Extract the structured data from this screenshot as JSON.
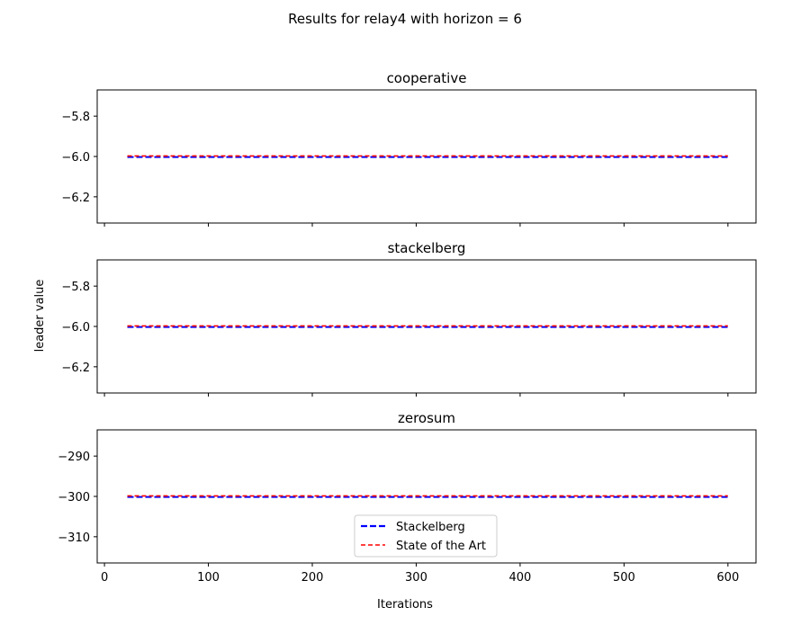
{
  "figure": {
    "suptitle": "Results for relay4 with horizon = 6",
    "xlabel": "Iterations",
    "ylabel": "leader value"
  },
  "legend": {
    "placement": "lower-center (bottom panel)",
    "entries": [
      {
        "label": "Stackelberg",
        "color": "#0000ff",
        "style": "dashed"
      },
      {
        "label": "State of the Art",
        "color": "#ff0000",
        "style": "dashed"
      }
    ]
  },
  "chart_data": [
    {
      "type": "line",
      "title": "cooperative",
      "xlabel": "",
      "ylabel": "",
      "xlim": [
        -7,
        627
      ],
      "ylim": [
        -6.33,
        -5.67
      ],
      "xticks": [
        0,
        100,
        200,
        300,
        400,
        500,
        600
      ],
      "xtick_labels_visible": false,
      "yticks": [
        -5.8,
        -6.0,
        -6.2
      ],
      "ytick_labels": [
        "−5.8",
        "−6.0",
        "−6.2"
      ],
      "grid": false,
      "series": [
        {
          "name": "Stackelberg",
          "color": "#0000ff",
          "x": [
            22,
            600
          ],
          "y": [
            -6.0,
            -6.0
          ]
        },
        {
          "name": "State of the Art",
          "color": "#ff0000",
          "x": [
            22,
            600
          ],
          "y": [
            -6.0,
            -6.0
          ]
        }
      ]
    },
    {
      "type": "line",
      "title": "stackelberg",
      "xlabel": "",
      "ylabel": "leader value",
      "xlim": [
        -7,
        627
      ],
      "ylim": [
        -6.33,
        -5.67
      ],
      "xticks": [
        0,
        100,
        200,
        300,
        400,
        500,
        600
      ],
      "xtick_labels_visible": false,
      "yticks": [
        -5.8,
        -6.0,
        -6.2
      ],
      "ytick_labels": [
        "−5.8",
        "−6.0",
        "−6.2"
      ],
      "grid": false,
      "series": [
        {
          "name": "Stackelberg",
          "color": "#0000ff",
          "x": [
            22,
            600
          ],
          "y": [
            -6.0,
            -6.0
          ]
        },
        {
          "name": "State of the Art",
          "color": "#ff0000",
          "x": [
            22,
            600
          ],
          "y": [
            -6.0,
            -6.0
          ]
        }
      ]
    },
    {
      "type": "line",
      "title": "zerosum",
      "xlabel": "Iterations",
      "ylabel": "",
      "xlim": [
        -7,
        627
      ],
      "ylim": [
        -316.5,
        -283.5
      ],
      "xticks": [
        0,
        100,
        200,
        300,
        400,
        500,
        600
      ],
      "xtick_labels_visible": true,
      "xtick_labels": [
        "0",
        "100",
        "200",
        "300",
        "400",
        "500",
        "600"
      ],
      "yticks": [
        -290,
        -300,
        -310
      ],
      "ytick_labels": [
        "−290",
        "−300",
        "−310"
      ],
      "grid": false,
      "series": [
        {
          "name": "Stackelberg",
          "color": "#0000ff",
          "x": [
            22,
            600
          ],
          "y": [
            -300,
            -300
          ]
        },
        {
          "name": "State of the Art",
          "color": "#ff0000",
          "x": [
            22,
            600
          ],
          "y": [
            -300,
            -300
          ]
        }
      ]
    }
  ]
}
